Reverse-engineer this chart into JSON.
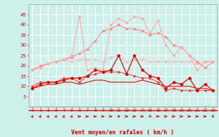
{
  "x": [
    0,
    1,
    2,
    3,
    4,
    5,
    6,
    7,
    8,
    9,
    10,
    11,
    12,
    13,
    14,
    15,
    16,
    17,
    18,
    19,
    20,
    21,
    22,
    23
  ],
  "line_dark1": [
    9,
    11,
    12,
    12,
    13,
    14,
    14,
    15,
    18,
    17,
    18,
    25,
    16,
    25,
    18,
    15,
    14,
    9,
    12,
    11,
    14,
    8,
    11,
    8
  ],
  "line_dark2": [
    10,
    12,
    12,
    12,
    14,
    14,
    12,
    15,
    16,
    17,
    17,
    17,
    16,
    15,
    14,
    14,
    12,
    8,
    9,
    8,
    8,
    8,
    8,
    8
  ],
  "line_dark3": [
    9,
    10,
    11,
    11,
    12,
    12,
    11,
    12,
    13,
    13,
    12,
    12,
    12,
    12,
    13,
    12,
    11,
    10,
    10,
    10,
    10,
    9,
    9,
    8
  ],
  "line_light1": [
    18,
    19,
    21,
    22,
    23,
    25,
    44,
    18,
    19,
    18,
    40,
    43,
    41,
    44,
    43,
    36,
    42,
    30,
    25,
    29,
    25,
    18,
    22,
    22
  ],
  "line_light2": [
    18,
    20,
    21,
    22,
    23,
    24,
    26,
    28,
    32,
    37,
    38,
    40,
    38,
    38,
    37,
    35,
    36,
    34,
    30,
    29,
    25,
    22,
    19,
    22
  ],
  "line_light3": [
    18,
    19,
    21,
    22,
    23,
    22,
    23,
    23,
    23,
    22,
    24,
    25,
    22,
    23,
    23,
    22,
    22,
    22,
    22,
    22,
    22,
    21,
    22,
    22
  ],
  "background_color": "#cef0ea",
  "grid_color": "#ffffff",
  "line_dark_color": "#dd0000",
  "line_medium_color": "#ee4444",
  "line_light1_color": "#ffaaaa",
  "line_light2_color": "#ff8888",
  "line_light3_color": "#ffbbbb",
  "arrow_color": "#dd0000",
  "xlabel": "Vent moyen/en rafales ( km/h )",
  "tick_color": "#cc0000",
  "ylim": [
    0,
    50
  ],
  "yticks": [
    5,
    10,
    15,
    20,
    25,
    30,
    35,
    40,
    45
  ]
}
